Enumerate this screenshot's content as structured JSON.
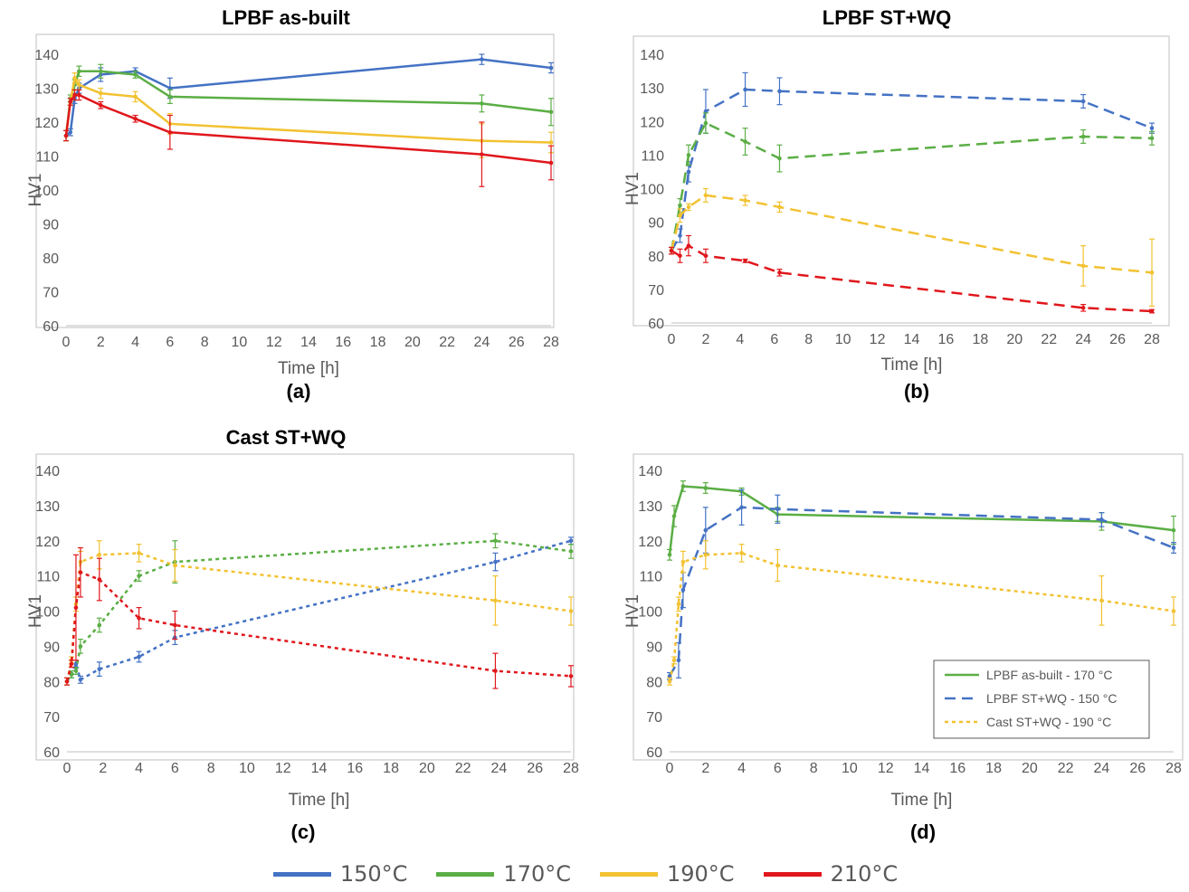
{
  "colors": {
    "150": "#4472C4",
    "170": "#5BAE45",
    "190": "#F2C232",
    "210": "#E0171C"
  },
  "legend": [
    {
      "label": "150°C",
      "color": "#4472C4"
    },
    {
      "label": "170°C",
      "color": "#5BAE45"
    },
    {
      "label": "190°C",
      "color": "#F2C232"
    },
    {
      "label": "210°C",
      "color": "#E0171C"
    }
  ],
  "chart_data": [
    {
      "type": "line",
      "title": "LPBF as-built",
      "caption": "(a)",
      "xlabel": "Time [h]",
      "ylabel": "HV1",
      "xlim": [
        0,
        28
      ],
      "ylim": [
        60,
        140
      ],
      "xticks": [
        0,
        2,
        4,
        6,
        8,
        10,
        12,
        14,
        16,
        18,
        20,
        22,
        24,
        26,
        28
      ],
      "yticks": [
        60,
        70,
        80,
        90,
        100,
        110,
        120,
        130,
        140
      ],
      "grid": false,
      "series": [
        {
          "name": "150°C",
          "style": "solid",
          "x": [
            0,
            0.25,
            0.5,
            0.75,
            2,
            4,
            6,
            24,
            28
          ],
          "y": [
            116,
            117,
            127,
            130,
            134,
            135,
            130,
            138.5,
            136
          ],
          "err": [
            1.5,
            1,
            1.5,
            1.5,
            2,
            1,
            3,
            1.5,
            1.5
          ]
        },
        {
          "name": "170°C",
          "style": "solid",
          "x": [
            0,
            0.25,
            0.5,
            0.75,
            2,
            4,
            6,
            24,
            28
          ],
          "y": [
            116,
            127,
            131,
            135,
            135,
            134,
            127.5,
            125.5,
            123
          ],
          "err": [
            1.5,
            1,
            1.5,
            1.5,
            2,
            1,
            2,
            2.5,
            4
          ]
        },
        {
          "name": "190°C",
          "style": "solid",
          "x": [
            0,
            0.25,
            0.5,
            0.75,
            2,
            4,
            6,
            24,
            28
          ],
          "y": [
            116,
            126,
            133,
            131,
            128.5,
            127.5,
            119.5,
            114.5,
            114
          ],
          "err": [
            1.5,
            1,
            1.5,
            1.5,
            1.5,
            1.5,
            3,
            5,
            3
          ]
        },
        {
          "name": "210°C",
          "style": "solid",
          "x": [
            0,
            0.25,
            0.5,
            0.75,
            2,
            4,
            6,
            24,
            28
          ],
          "y": [
            116,
            126,
            128,
            128,
            125,
            121,
            117,
            110.5,
            108
          ],
          "err": [
            1.5,
            1,
            1.5,
            1.5,
            1,
            1,
            5,
            9.5,
            5
          ]
        }
      ]
    },
    {
      "type": "line",
      "title": "LPBF ST+WQ",
      "caption": "(b)",
      "xlabel": "Time [h]",
      "ylabel": "HV1",
      "xlim": [
        0,
        28
      ],
      "ylim": [
        60,
        140
      ],
      "xticks": [
        0,
        2,
        4,
        6,
        8,
        10,
        12,
        14,
        16,
        18,
        20,
        22,
        24,
        26,
        28
      ],
      "yticks": [
        60,
        70,
        80,
        90,
        100,
        110,
        120,
        130,
        140
      ],
      "grid": false,
      "series": [
        {
          "name": "150°C",
          "style": "dash",
          "x": [
            0,
            0.5,
            1,
            2,
            4.3,
            6.3,
            24,
            28
          ],
          "y": [
            81.5,
            86,
            105,
            123,
            129.5,
            129,
            126,
            118
          ],
          "err": [
            1,
            2,
            3,
            6.5,
            5,
            4,
            2,
            1.5
          ]
        },
        {
          "name": "170°C",
          "style": "dash",
          "x": [
            0,
            0.5,
            1,
            2,
            4.3,
            6.3,
            24,
            28
          ],
          "y": [
            81.5,
            95,
            110,
            119.5,
            114,
            109,
            115.5,
            115
          ],
          "err": [
            1,
            2,
            3,
            3,
            4,
            4,
            2,
            2
          ]
        },
        {
          "name": "190°C",
          "style": "dash",
          "x": [
            0,
            0.5,
            1,
            2,
            4.3,
            6.3,
            24,
            28
          ],
          "y": [
            81.5,
            92,
            94.5,
            98,
            96.5,
            94.5,
            77,
            75
          ],
          "err": [
            1,
            2,
            1,
            2,
            1.5,
            1.5,
            6,
            10
          ]
        },
        {
          "name": "210°C",
          "style": "dash",
          "x": [
            0,
            0.5,
            1,
            2,
            4.3,
            6.3,
            24,
            28
          ],
          "y": [
            81.5,
            80,
            83,
            80,
            78.5,
            75,
            64.5,
            63.5
          ],
          "err": [
            1,
            2,
            3,
            2,
            0.5,
            1,
            1,
            0.5
          ]
        }
      ]
    },
    {
      "type": "line",
      "title": "Cast ST+WQ",
      "caption": "(c)",
      "xlabel": "Time [h]",
      "ylabel": "HV1",
      "xlim": [
        0,
        28
      ],
      "ylim": [
        60,
        140
      ],
      "xticks": [
        0,
        2,
        4,
        6,
        8,
        10,
        12,
        14,
        16,
        18,
        20,
        22,
        24,
        26,
        28
      ],
      "yticks": [
        60,
        70,
        80,
        90,
        100,
        110,
        120,
        130,
        140
      ],
      "grid": false,
      "series": [
        {
          "name": "150°C",
          "style": "dot",
          "x": [
            0,
            0.25,
            0.5,
            0.75,
            1.8,
            4,
            6,
            23.8,
            28
          ],
          "y": [
            80,
            82,
            85,
            80.5,
            83.5,
            87,
            92.5,
            114,
            120
          ],
          "err": [
            1,
            1,
            1,
            1,
            2,
            1.5,
            2,
            2.5,
            1
          ]
        },
        {
          "name": "170°C",
          "style": "dot",
          "x": [
            0,
            0.25,
            0.5,
            0.75,
            1.8,
            4,
            6,
            23.8,
            28
          ],
          "y": [
            80,
            82,
            83,
            90,
            96,
            110,
            114,
            120,
            117
          ],
          "err": [
            1,
            1,
            1,
            2,
            2,
            1.5,
            6,
            2,
            2
          ]
        },
        {
          "name": "190°C",
          "style": "dot",
          "x": [
            0,
            0.25,
            0.5,
            0.75,
            1.8,
            4,
            6,
            23.8,
            28
          ],
          "y": [
            80,
            86,
            102,
            114,
            116,
            116.5,
            113,
            103,
            100
          ],
          "err": [
            1,
            1,
            2,
            3,
            4,
            2.5,
            4.5,
            7,
            4
          ]
        },
        {
          "name": "210°C",
          "style": "dot",
          "x": [
            0,
            0.25,
            0.5,
            0.75,
            1.8,
            4,
            6,
            23.8,
            28
          ],
          "y": [
            80,
            85,
            101,
            111,
            109,
            98,
            96,
            83,
            81.5
          ],
          "err": [
            1,
            1,
            15,
            7,
            6,
            3,
            4,
            5,
            3
          ]
        }
      ]
    },
    {
      "type": "line",
      "title": "",
      "caption": "(d)",
      "xlabel": "Time [h]",
      "ylabel": "HV1",
      "xlim": [
        0,
        28
      ],
      "ylim": [
        60,
        140
      ],
      "xticks": [
        0,
        2,
        4,
        6,
        8,
        10,
        12,
        14,
        16,
        18,
        20,
        22,
        24,
        26,
        28
      ],
      "yticks": [
        60,
        70,
        80,
        90,
        100,
        110,
        120,
        130,
        140
      ],
      "grid": false,
      "legend_position": "bottom-right",
      "series": [
        {
          "name": "LPBF as-built - 170 °C",
          "style": "solid",
          "color": "#5BAE45",
          "x": [
            0,
            0.25,
            0.75,
            2,
            4,
            6,
            24,
            28
          ],
          "y": [
            116,
            127,
            135.5,
            135,
            134,
            127.5,
            125.5,
            123
          ],
          "err": [
            1.5,
            3,
            1.5,
            1.5,
            1,
            2,
            2.5,
            4
          ]
        },
        {
          "name": "LPBF ST+WQ - 150 °C",
          "style": "dash",
          "color": "#4472C4",
          "x": [
            0,
            0.5,
            0.75,
            2,
            4,
            6,
            24,
            28
          ],
          "y": [
            81.5,
            86,
            106,
            123,
            129.5,
            129,
            126,
            118
          ],
          "err": [
            1,
            5,
            5,
            6.5,
            5,
            4,
            2,
            1.5
          ]
        },
        {
          "name": "Cast ST+WQ - 190 °C",
          "style": "dot",
          "color": "#F2C232",
          "x": [
            0,
            0.25,
            0.5,
            0.75,
            2,
            4,
            6,
            24,
            28
          ],
          "y": [
            80,
            86,
            102,
            114,
            116,
            116.5,
            113,
            103,
            100
          ],
          "err": [
            1,
            1,
            2,
            3,
            4,
            2.5,
            4.5,
            7,
            4
          ]
        }
      ]
    }
  ]
}
